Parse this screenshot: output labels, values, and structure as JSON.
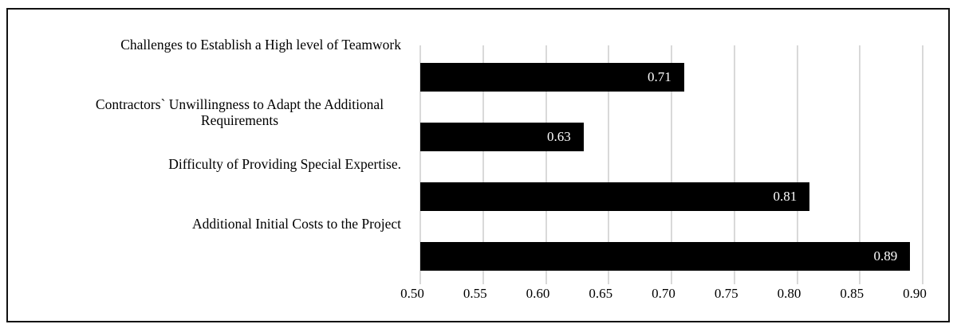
{
  "chart_data": {
    "type": "bar",
    "orientation": "horizontal",
    "title": "",
    "xlabel": "",
    "ylabel": "",
    "categories": [
      "Challenges to Establish a High level of Teamwork",
      "Contractors` Unwillingness to Adapt the Additional\nRequirements",
      "Difficulty of Providing Special Expertise.",
      "Additional Initial Costs to the Project"
    ],
    "values": [
      0.71,
      0.63,
      0.81,
      0.89
    ],
    "value_labels": [
      "0.71",
      "0.63",
      "0.81",
      "0.89"
    ],
    "xlim": [
      0.5,
      0.9
    ],
    "x_ticks": [
      "0.50",
      "0.55",
      "0.60",
      "0.65",
      "0.70",
      "0.75",
      "0.80",
      "0.85",
      "0.90"
    ],
    "x_tick_values": [
      0.5,
      0.55,
      0.6,
      0.65,
      0.7,
      0.75,
      0.8,
      0.85,
      0.9
    ],
    "grid": true,
    "legend": false,
    "colors": {
      "bar": "#000000",
      "gridline": "#d9d9d9",
      "value_label": "#ffffff",
      "text": "#000000",
      "frame_border": "#111111",
      "background": "#ffffff"
    }
  }
}
